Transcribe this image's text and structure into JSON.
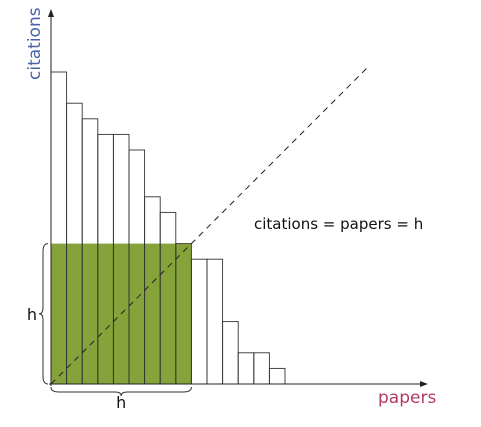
{
  "chart_data": {
    "type": "bar",
    "title": "",
    "xlabel": "papers",
    "ylabel": "citations",
    "values": [
      20,
      18,
      17,
      16,
      16,
      15,
      12,
      11,
      9,
      8,
      8,
      4,
      2,
      2,
      1
    ],
    "h": 9,
    "xlim": [
      0,
      24
    ],
    "ylim": [
      0,
      24
    ],
    "annotations": {
      "diagonal_label": "citations = papers = h",
      "h_x_label": "h",
      "h_y_label": "h"
    },
    "colors": {
      "highlight": "#86a23a",
      "bar_stroke": "#333333",
      "xlabel_color": "#b23a62",
      "ylabel_color": "#4a63a8",
      "axis": "#222222"
    }
  }
}
